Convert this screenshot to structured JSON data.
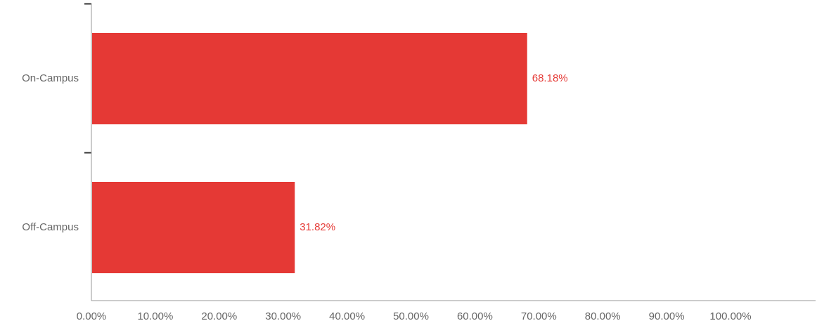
{
  "chart_data": {
    "type": "bar",
    "orientation": "horizontal",
    "title": "",
    "xlabel": "",
    "ylabel": "",
    "categories": [
      "On-Campus",
      "Off-Campus"
    ],
    "values": [
      68.18,
      31.82
    ],
    "data_labels": [
      "68.18%",
      "31.82%"
    ],
    "xlim": [
      0,
      100
    ],
    "x_ticks": [
      0,
      10,
      20,
      30,
      40,
      50,
      60,
      70,
      80,
      90,
      100
    ],
    "x_tick_labels": [
      "0.00%",
      "10.00%",
      "20.00%",
      "30.00%",
      "40.00%",
      "50.00%",
      "60.00%",
      "70.00%",
      "80.00%",
      "90.00%",
      "100.00%"
    ],
    "grid": false,
    "legend": "none",
    "colors": {
      "bar": "#e53935",
      "data_label": "#e53935",
      "axis": "#999999",
      "tick_mark": "#333333",
      "text": "#666666"
    }
  }
}
